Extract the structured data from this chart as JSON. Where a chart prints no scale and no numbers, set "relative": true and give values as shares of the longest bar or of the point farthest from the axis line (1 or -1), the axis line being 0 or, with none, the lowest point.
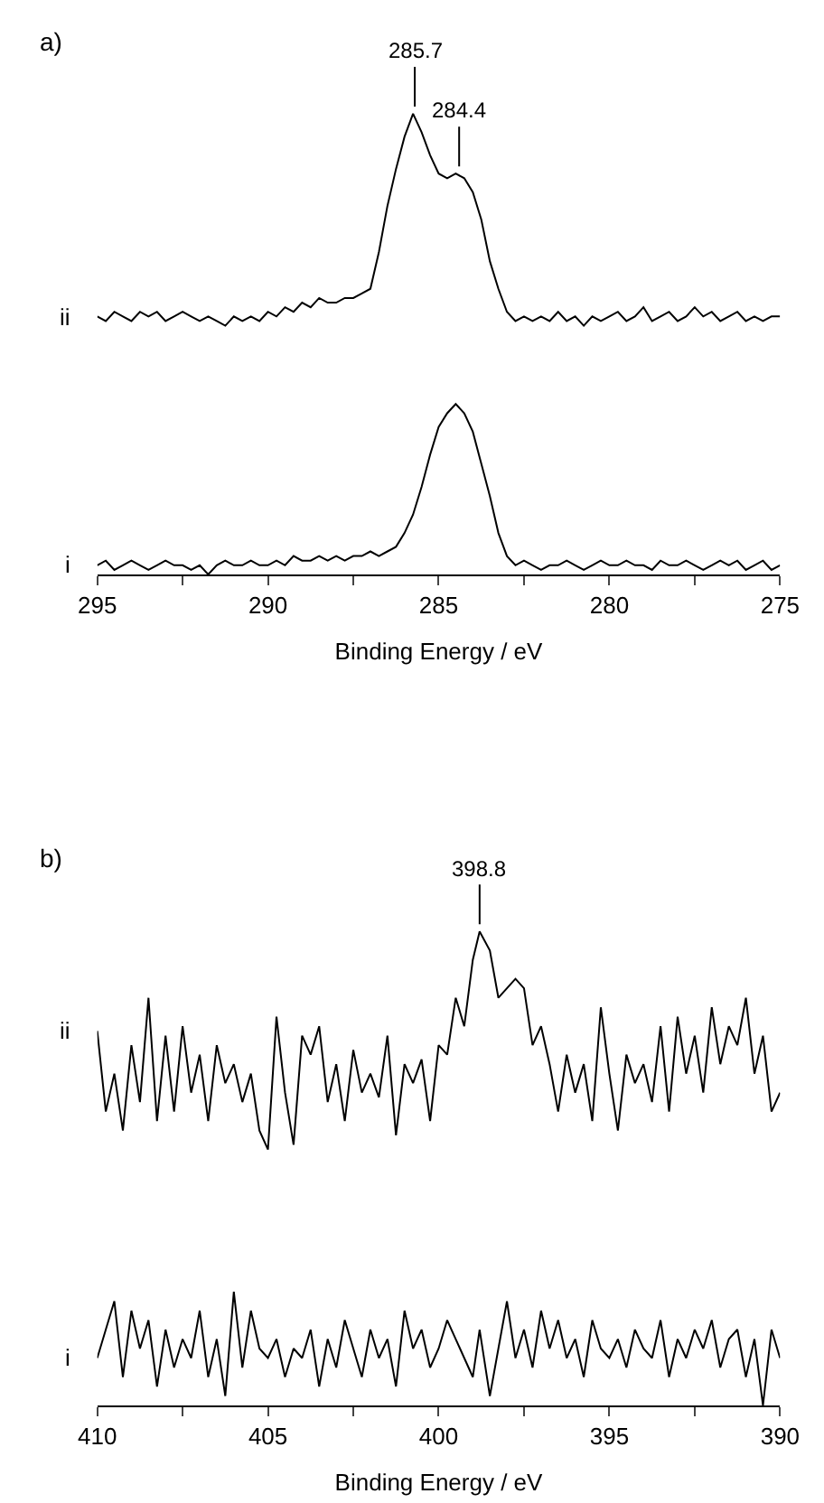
{
  "chart_data": [
    {
      "type": "line",
      "title": "a)",
      "xlabel": "Binding Energy / eV",
      "relative": true,
      "xlim": [
        295,
        275
      ],
      "xticks": [
        295,
        {
          "value": 292.5,
          "label": null
        },
        290,
        {
          "value": 287.5,
          "label": null
        },
        285,
        {
          "value": 282.5,
          "label": null
        },
        280,
        {
          "value": 277.5,
          "label": null
        },
        275
      ],
      "x": [
        295,
        294.75,
        294.5,
        294.25,
        294,
        293.75,
        293.5,
        293.25,
        293,
        292.75,
        292.5,
        292.25,
        292,
        291.75,
        291.5,
        291.25,
        291,
        290.75,
        290.5,
        290.25,
        290,
        289.75,
        289.5,
        289.25,
        289,
        288.75,
        288.5,
        288.25,
        288,
        287.75,
        287.5,
        287.25,
        287,
        286.75,
        286.5,
        286.25,
        286,
        285.75,
        285.5,
        285.25,
        285,
        284.75,
        284.5,
        284.25,
        284,
        283.75,
        283.5,
        283.25,
        283,
        282.75,
        282.5,
        282.25,
        282,
        281.75,
        281.5,
        281.25,
        281,
        280.75,
        280.5,
        280.25,
        280,
        279.75,
        279.5,
        279.25,
        279,
        278.75,
        278.5,
        278.25,
        278,
        277.75,
        277.5,
        277.25,
        277,
        276.75,
        276.5,
        276.25,
        276,
        275.75,
        275.5,
        275.25,
        275
      ],
      "series": [
        {
          "name": "ii",
          "color": "#000000",
          "values": [
            0.56,
            0.55,
            0.57,
            0.56,
            0.55,
            0.57,
            0.56,
            0.57,
            0.55,
            0.56,
            0.57,
            0.56,
            0.55,
            0.56,
            0.55,
            0.54,
            0.56,
            0.55,
            0.56,
            0.55,
            0.57,
            0.56,
            0.58,
            0.57,
            0.59,
            0.58,
            0.6,
            0.59,
            0.59,
            0.6,
            0.6,
            0.61,
            0.62,
            0.7,
            0.8,
            0.88,
            0.95,
            1.0,
            0.96,
            0.91,
            0.87,
            0.86,
            0.87,
            0.86,
            0.83,
            0.77,
            0.68,
            0.62,
            0.57,
            0.55,
            0.56,
            0.55,
            0.56,
            0.55,
            0.57,
            0.55,
            0.56,
            0.54,
            0.56,
            0.55,
            0.56,
            0.57,
            0.55,
            0.56,
            0.58,
            0.55,
            0.56,
            0.57,
            0.55,
            0.56,
            0.58,
            0.56,
            0.57,
            0.55,
            0.56,
            0.57,
            0.55,
            0.56,
            0.55,
            0.56,
            0.56
          ]
        },
        {
          "name": "i",
          "color": "#000000",
          "values": [
            0.02,
            0.03,
            0.01,
            0.02,
            0.03,
            0.02,
            0.01,
            0.02,
            0.03,
            0.02,
            0.02,
            0.01,
            0.02,
            0.0,
            0.02,
            0.03,
            0.02,
            0.02,
            0.03,
            0.02,
            0.02,
            0.03,
            0.02,
            0.04,
            0.03,
            0.03,
            0.04,
            0.03,
            0.04,
            0.03,
            0.04,
            0.04,
            0.05,
            0.04,
            0.05,
            0.06,
            0.09,
            0.13,
            0.19,
            0.26,
            0.32,
            0.35,
            0.37,
            0.35,
            0.31,
            0.24,
            0.17,
            0.09,
            0.04,
            0.02,
            0.03,
            0.02,
            0.01,
            0.02,
            0.02,
            0.03,
            0.02,
            0.01,
            0.02,
            0.03,
            0.02,
            0.02,
            0.03,
            0.02,
            0.02,
            0.01,
            0.03,
            0.02,
            0.02,
            0.03,
            0.02,
            0.01,
            0.02,
            0.03,
            0.02,
            0.03,
            0.01,
            0.02,
            0.03,
            0.01,
            0.02
          ]
        }
      ],
      "annotations": [
        {
          "text": "285.7",
          "x": 285.7,
          "y": 1.0
        },
        {
          "text": "284.4",
          "x": 284.4,
          "y": 0.87
        }
      ]
    },
    {
      "type": "line",
      "title": "b)",
      "xlabel": "Binding Energy / eV",
      "relative": true,
      "xlim": [
        410,
        390
      ],
      "xticks": [
        410,
        {
          "value": 407.5,
          "label": null
        },
        405,
        {
          "value": 402.5,
          "label": null
        },
        400,
        {
          "value": 397.5,
          "label": null
        },
        395,
        {
          "value": 392.5,
          "label": null
        },
        390
      ],
      "x": [
        410,
        409.75,
        409.5,
        409.25,
        409,
        408.75,
        408.5,
        408.25,
        408,
        407.75,
        407.5,
        407.25,
        407,
        406.75,
        406.5,
        406.25,
        406,
        405.75,
        405.5,
        405.25,
        405,
        404.75,
        404.5,
        404.25,
        404,
        403.75,
        403.5,
        403.25,
        403,
        402.75,
        402.5,
        402.25,
        402,
        401.75,
        401.5,
        401.25,
        401,
        400.75,
        400.5,
        400.25,
        400,
        399.75,
        399.5,
        399.25,
        399,
        398.8,
        398.5,
        398.25,
        398,
        397.75,
        397.5,
        397.25,
        397,
        396.75,
        396.5,
        396.25,
        396,
        395.75,
        395.5,
        395.25,
        395,
        394.75,
        394.5,
        394.25,
        394,
        393.75,
        393.5,
        393.25,
        393,
        392.75,
        392.5,
        392.25,
        392,
        391.75,
        391.5,
        391.25,
        391,
        390.75,
        390.5,
        390.25,
        390
      ],
      "series": [
        {
          "name": "ii",
          "color": "#000000",
          "values": [
            0.79,
            0.62,
            0.7,
            0.58,
            0.76,
            0.64,
            0.86,
            0.6,
            0.78,
            0.62,
            0.8,
            0.66,
            0.74,
            0.6,
            0.76,
            0.68,
            0.72,
            0.64,
            0.7,
            0.58,
            0.54,
            0.82,
            0.66,
            0.55,
            0.78,
            0.74,
            0.8,
            0.64,
            0.72,
            0.6,
            0.75,
            0.66,
            0.7,
            0.65,
            0.78,
            0.57,
            0.72,
            0.68,
            0.73,
            0.6,
            0.76,
            0.74,
            0.86,
            0.8,
            0.94,
            1.0,
            0.96,
            0.86,
            0.88,
            0.9,
            0.88,
            0.76,
            0.8,
            0.72,
            0.62,
            0.74,
            0.66,
            0.72,
            0.6,
            0.84,
            0.7,
            0.58,
            0.74,
            0.68,
            0.72,
            0.64,
            0.8,
            0.62,
            0.82,
            0.7,
            0.78,
            0.66,
            0.84,
            0.72,
            0.8,
            0.76,
            0.86,
            0.7,
            0.78,
            0.62,
            0.66
          ]
        },
        {
          "name": "i",
          "color": "#000000",
          "values": [
            0.1,
            0.16,
            0.22,
            0.06,
            0.2,
            0.12,
            0.18,
            0.04,
            0.16,
            0.08,
            0.14,
            0.1,
            0.2,
            0.06,
            0.14,
            0.02,
            0.24,
            0.08,
            0.2,
            0.12,
            0.1,
            0.14,
            0.06,
            0.12,
            0.1,
            0.16,
            0.04,
            0.14,
            0.08,
            0.18,
            0.12,
            0.06,
            0.16,
            0.1,
            0.14,
            0.04,
            0.2,
            0.12,
            0.16,
            0.08,
            0.12,
            0.18,
            0.14,
            0.1,
            0.06,
            0.16,
            0.02,
            0.12,
            0.22,
            0.1,
            0.16,
            0.08,
            0.2,
            0.12,
            0.18,
            0.1,
            0.14,
            0.06,
            0.18,
            0.12,
            0.1,
            0.14,
            0.08,
            0.16,
            0.12,
            0.1,
            0.18,
            0.06,
            0.14,
            0.1,
            0.16,
            0.12,
            0.18,
            0.08,
            0.14,
            0.16,
            0.06,
            0.14,
            0.0,
            0.16,
            0.1
          ]
        }
      ],
      "annotations": [
        {
          "text": "398.8",
          "x": 398.8,
          "y": 1.0
        }
      ]
    }
  ]
}
